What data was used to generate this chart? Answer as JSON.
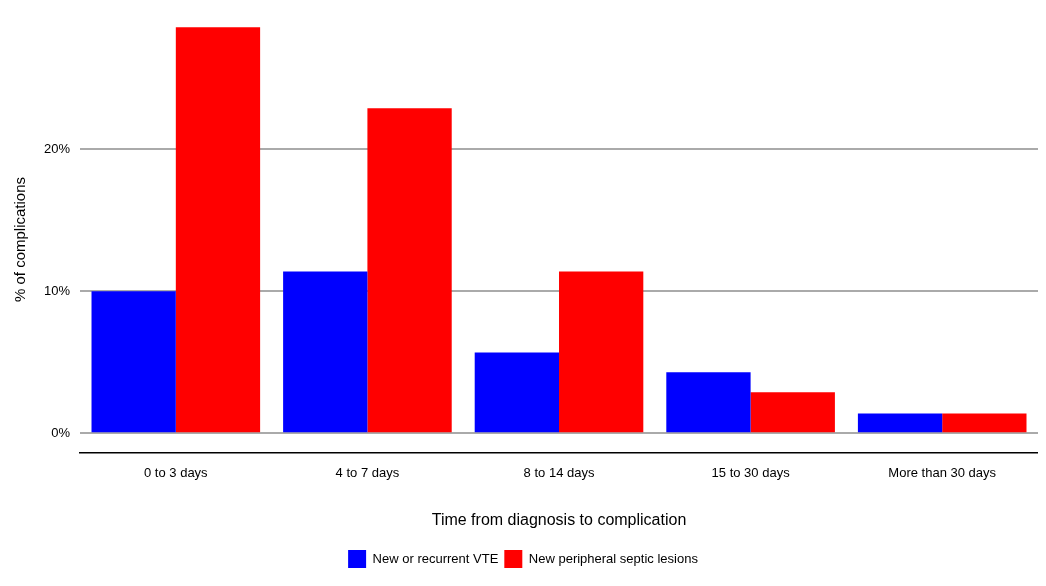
{
  "chart_data": {
    "type": "bar",
    "xlabel": "Time from diagnosis to complication",
    "ylabel": "% of complications",
    "categories": [
      "0 to 3 days",
      "4 to 7 days",
      "8 to 14 days",
      "15 to 30 days",
      "More than 30 days"
    ],
    "series": [
      {
        "name": "New or recurrent VTE",
        "color": "#0000ff",
        "values": [
          10.0,
          11.4,
          5.7,
          4.3,
          1.4
        ]
      },
      {
        "name": "New peripheral septic lesions",
        "color": "#ff0000",
        "values": [
          28.6,
          22.9,
          11.4,
          2.9,
          1.4
        ]
      }
    ],
    "ylim": [
      -1.4,
      28.7
    ],
    "yticks": [
      {
        "value": 0,
        "label": "0%"
      },
      {
        "value": 10,
        "label": "10%"
      },
      {
        "value": 20,
        "label": "20%"
      }
    ],
    "grid": "y",
    "legend": "bottom"
  }
}
